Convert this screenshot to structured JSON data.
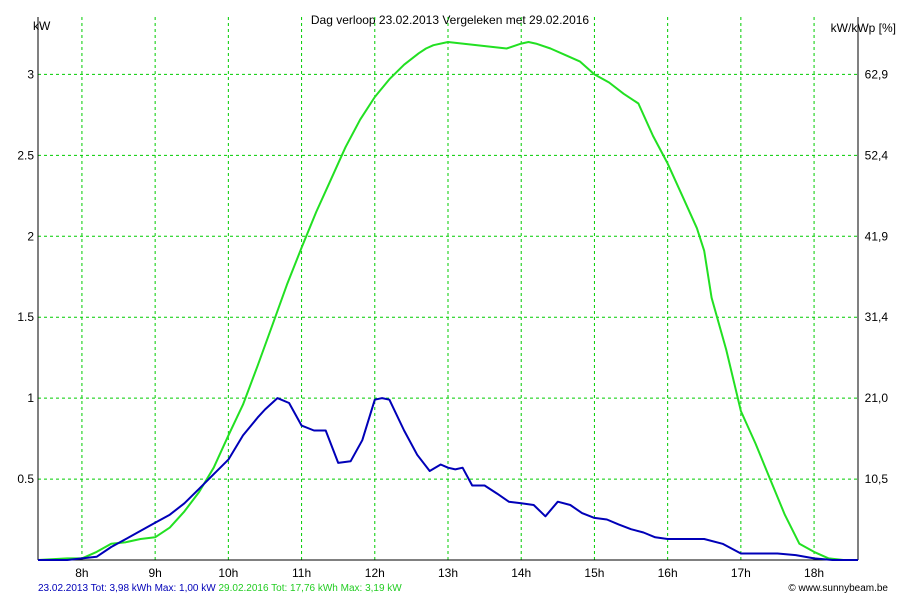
{
  "chart_data": {
    "type": "line",
    "title": "Dag  verloop 23.02.2013   Vergeleken met 29.02.2016",
    "ylabel_left": "kW",
    "ylabel_right": "kW/kWp [%]",
    "x_range": [
      7.4,
      18.6
    ],
    "x_ticks": [
      8,
      9,
      10,
      11,
      12,
      13,
      14,
      15,
      16,
      17,
      18
    ],
    "x_tick_labels": [
      "8h",
      "9h",
      "10h",
      "11h",
      "12h",
      "13h",
      "14h",
      "15h",
      "16h",
      "17h",
      "18h"
    ],
    "ylim": [
      0,
      3.2
    ],
    "y_ticks": [
      0.5,
      1,
      1.5,
      2,
      2.5,
      3
    ],
    "y_tick_labels": [
      "0.5",
      "1",
      "1.5",
      "2",
      "2.5",
      "3"
    ],
    "y_right_tick_labels": [
      "10,5",
      "21,0",
      "31,4",
      "41,9",
      "52,4",
      "62,9"
    ],
    "grid": true,
    "grid_color": "#00cc00",
    "series": [
      {
        "name": "23.02.2013",
        "color": "#0000b8",
        "x": [
          7.4,
          7.8,
          8.2,
          8.4,
          8.6,
          8.8,
          9.0,
          9.2,
          9.4,
          9.6,
          9.8,
          10.0,
          10.2,
          10.4,
          10.5,
          10.67,
          10.83,
          11.0,
          11.17,
          11.33,
          11.5,
          11.67,
          11.83,
          12.0,
          12.1,
          12.2,
          12.4,
          12.58,
          12.75,
          12.9,
          13.0,
          13.1,
          13.2,
          13.33,
          13.5,
          13.67,
          13.83,
          14.0,
          14.17,
          14.33,
          14.5,
          14.67,
          14.83,
          15.0,
          15.17,
          15.33,
          15.5,
          15.67,
          15.83,
          16.0,
          16.5,
          16.75,
          17.0,
          17.5,
          17.75,
          18.0,
          18.25,
          18.6
        ],
        "y": [
          0,
          0,
          0.02,
          0.08,
          0.13,
          0.18,
          0.23,
          0.28,
          0.35,
          0.44,
          0.53,
          0.62,
          0.77,
          0.88,
          0.93,
          1.0,
          0.97,
          0.83,
          0.8,
          0.8,
          0.6,
          0.61,
          0.74,
          0.99,
          1.0,
          0.99,
          0.8,
          0.65,
          0.55,
          0.59,
          0.57,
          0.56,
          0.57,
          0.46,
          0.46,
          0.41,
          0.36,
          0.35,
          0.34,
          0.27,
          0.36,
          0.34,
          0.29,
          0.26,
          0.25,
          0.22,
          0.19,
          0.17,
          0.14,
          0.13,
          0.13,
          0.1,
          0.04,
          0.04,
          0.03,
          0.01,
          0,
          0
        ]
      },
      {
        "name": "29.02.2016",
        "color": "#22e022",
        "x": [
          7.4,
          7.8,
          8.0,
          8.2,
          8.4,
          8.6,
          8.8,
          9.0,
          9.2,
          9.4,
          9.6,
          9.8,
          10.0,
          10.2,
          10.4,
          10.6,
          10.8,
          11.0,
          11.2,
          11.4,
          11.6,
          11.8,
          12.0,
          12.2,
          12.4,
          12.6,
          12.7,
          12.8,
          13.0,
          13.2,
          13.4,
          13.6,
          13.8,
          14.0,
          14.1,
          14.2,
          14.4,
          14.6,
          14.8,
          15.0,
          15.2,
          15.4,
          15.6,
          15.8,
          16.0,
          16.2,
          16.4,
          16.5,
          16.6,
          16.8,
          17.0,
          17.2,
          17.4,
          17.6,
          17.8,
          18.0,
          18.2,
          18.4,
          18.6
        ],
        "y": [
          0,
          0.01,
          0.01,
          0.05,
          0.1,
          0.11,
          0.13,
          0.14,
          0.2,
          0.3,
          0.42,
          0.57,
          0.77,
          0.96,
          1.2,
          1.45,
          1.7,
          1.93,
          2.15,
          2.35,
          2.55,
          2.72,
          2.86,
          2.97,
          3.06,
          3.13,
          3.16,
          3.18,
          3.2,
          3.19,
          3.18,
          3.17,
          3.16,
          3.19,
          3.2,
          3.19,
          3.16,
          3.12,
          3.08,
          3.0,
          2.95,
          2.88,
          2.82,
          2.62,
          2.45,
          2.25,
          2.05,
          1.91,
          1.62,
          1.3,
          0.92,
          0.72,
          0.5,
          0.28,
          0.1,
          0.05,
          0.01,
          0,
          0
        ]
      }
    ]
  },
  "footer": {
    "series1_date": "23.02.2013",
    "series1_summary": " Tot: 3,98 kWh Max: 1,00 kW ",
    "series2_date": "29.02.2016",
    "series2_summary": " Tot: 17,76 kWh Max: 3,19 kW",
    "copyright": "© www.sunnybeam.be"
  }
}
